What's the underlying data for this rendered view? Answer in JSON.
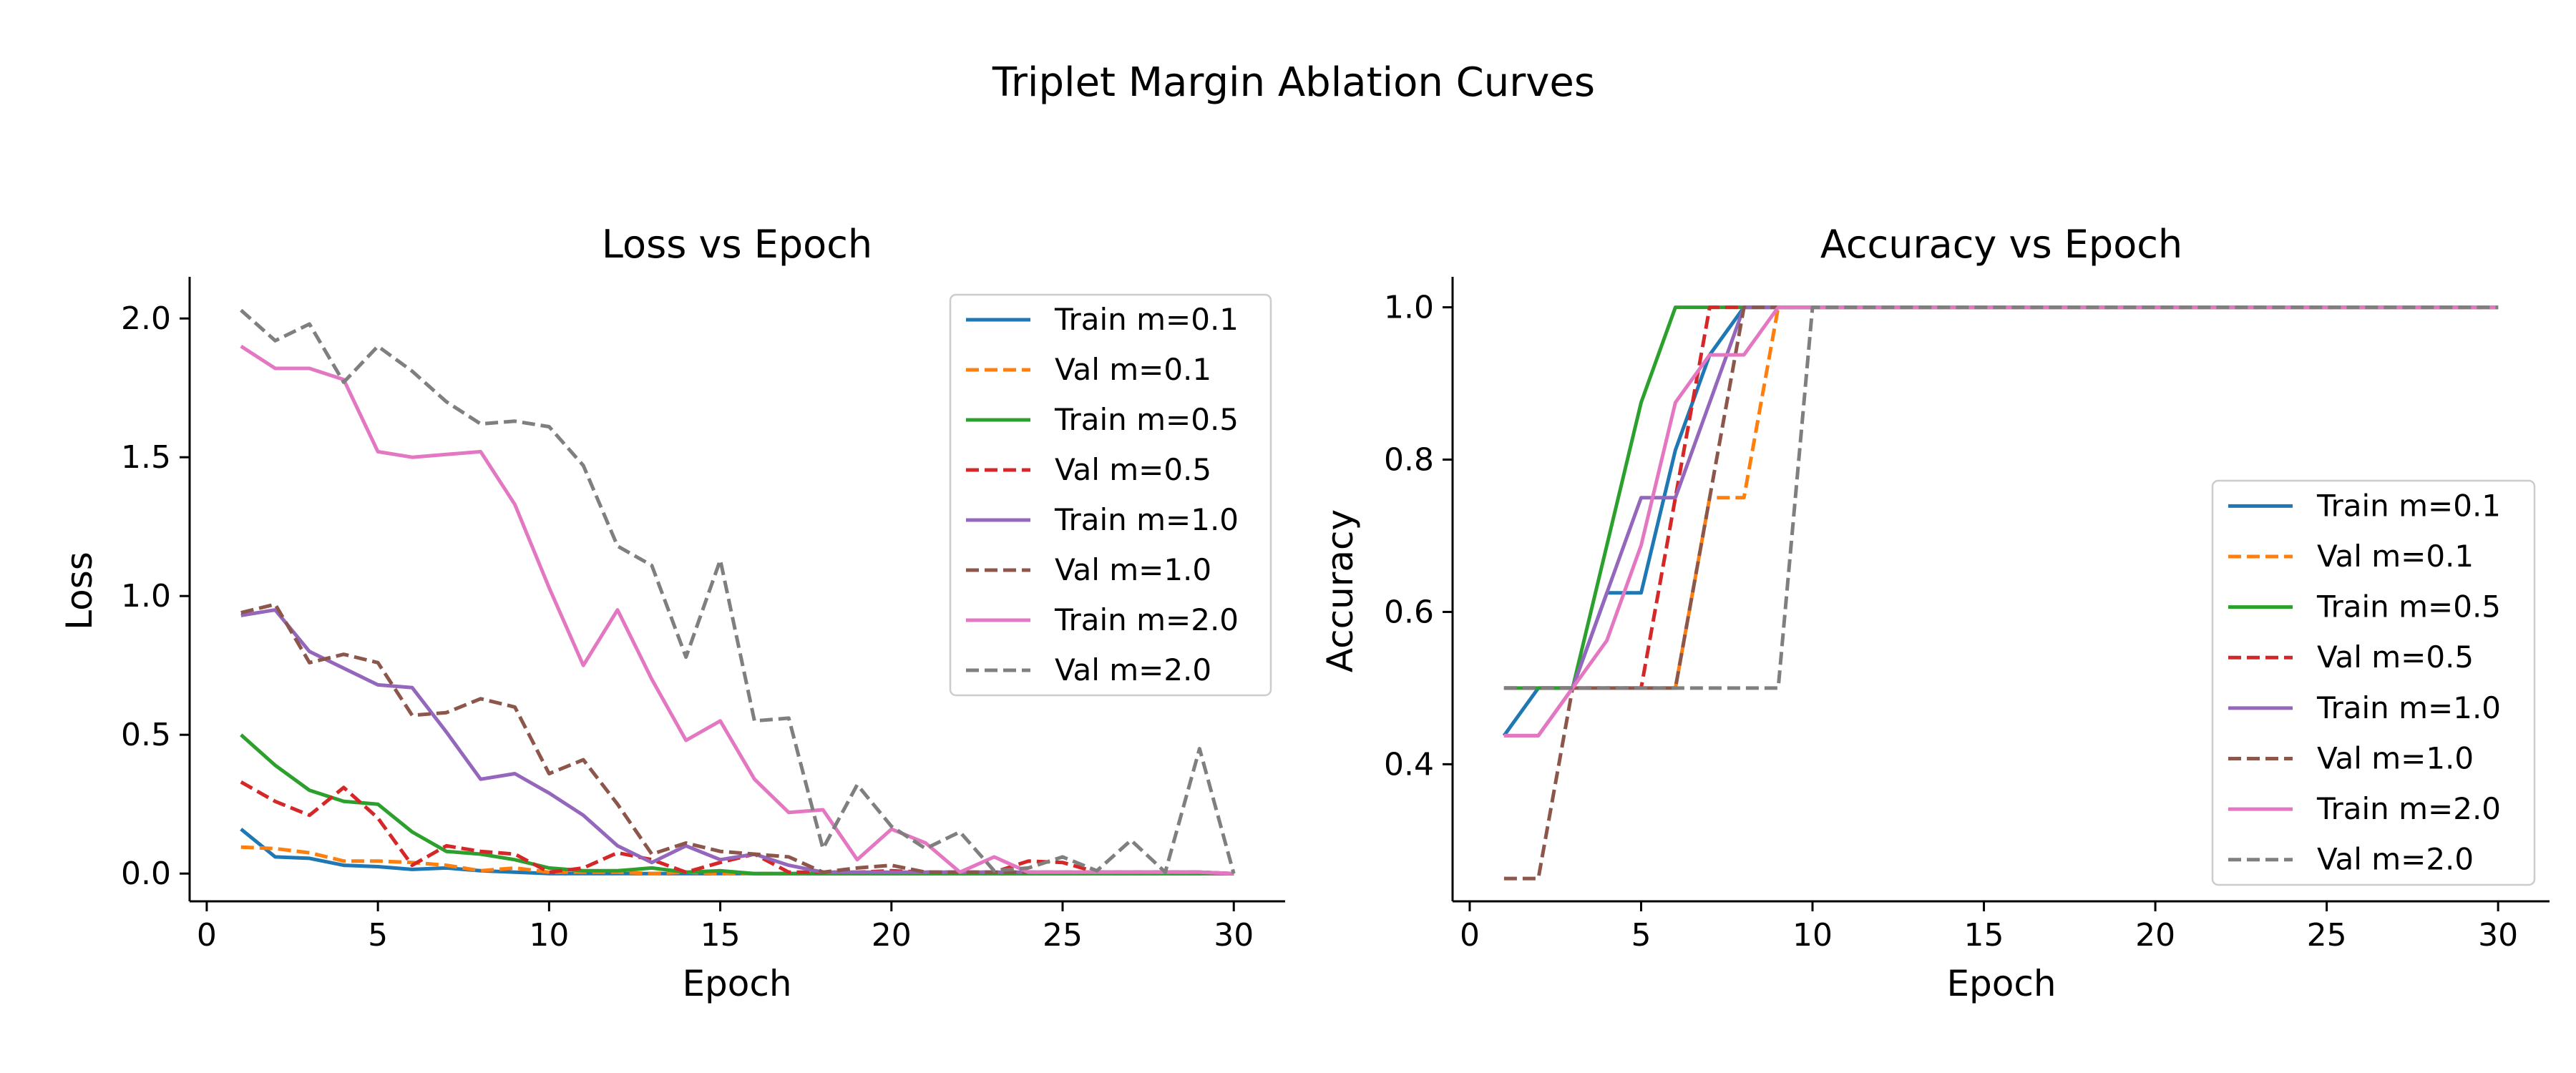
{
  "figure": {
    "title": "Triplet Margin Ablation Curves"
  },
  "colors": {
    "m0.1_train": "#1f77b4",
    "m0.1_val": "#ff7f0e",
    "m0.5_train": "#2ca02c",
    "m0.5_val": "#d62728",
    "m1.0_train": "#9467bd",
    "m1.0_val": "#8c564b",
    "m2.0_train": "#e377c2",
    "m2.0_val": "#7f7f7f"
  },
  "chart_data": [
    {
      "type": "line",
      "title": "Loss vs Epoch",
      "xlabel": "Epoch",
      "ylabel": "Loss",
      "xlim": [
        -0.5,
        31.5
      ],
      "ylim": [
        -0.1,
        2.15
      ],
      "xticks": [
        0,
        5,
        10,
        15,
        20,
        25,
        30
      ],
      "xtick_labels": [
        "0",
        "5",
        "10",
        "15",
        "20",
        "25",
        "30"
      ],
      "yticks": [
        0.0,
        0.5,
        1.0,
        1.5,
        2.0
      ],
      "ytick_labels": [
        "0.0",
        "0.5",
        "1.0",
        "1.5",
        "2.0"
      ],
      "legend_position": "upper right",
      "grid": false,
      "x": [
        1,
        2,
        3,
        4,
        5,
        6,
        7,
        8,
        9,
        10,
        11,
        12,
        13,
        14,
        15,
        16,
        17,
        18,
        19,
        20,
        21,
        22,
        23,
        24,
        25,
        26,
        27,
        28,
        29,
        30
      ],
      "series": [
        {
          "name": "Train m=0.1",
          "color_key": "m0.1_train",
          "dash": "solid",
          "values": [
            0.16,
            0.06,
            0.055,
            0.03,
            0.025,
            0.015,
            0.02,
            0.01,
            0.005,
            0,
            0,
            0,
            0,
            0,
            0,
            0,
            0,
            0,
            0,
            0,
            0,
            0,
            0,
            0,
            0,
            0,
            0,
            0,
            0,
            0
          ]
        },
        {
          "name": "Val m=0.1",
          "color_key": "m0.1_val",
          "dash": "dashed",
          "values": [
            0.095,
            0.09,
            0.075,
            0.045,
            0.045,
            0.04,
            0.03,
            0.01,
            0.02,
            0.005,
            0.005,
            0.005,
            0,
            0.005,
            0,
            0,
            0,
            0,
            0,
            0,
            0,
            0,
            0,
            0,
            0,
            0,
            0,
            0,
            0,
            0
          ]
        },
        {
          "name": "Train m=0.5",
          "color_key": "m0.5_train",
          "dash": "solid",
          "values": [
            0.5,
            0.39,
            0.3,
            0.26,
            0.25,
            0.15,
            0.08,
            0.07,
            0.05,
            0.02,
            0.01,
            0.01,
            0.02,
            0.005,
            0.01,
            0,
            0,
            0,
            0,
            0,
            0,
            0,
            0,
            0,
            0,
            0,
            0,
            0,
            0,
            0
          ]
        },
        {
          "name": "Val m=0.5",
          "color_key": "m0.5_val",
          "dash": "dashed",
          "values": [
            0.33,
            0.26,
            0.21,
            0.31,
            0.2,
            0.03,
            0.1,
            0.08,
            0.07,
            0.005,
            0.02,
            0.075,
            0.05,
            0.005,
            0.04,
            0.07,
            0.005,
            0.005,
            0.005,
            0.01,
            0.005,
            0.005,
            0.005,
            0.045,
            0.04,
            0.005,
            0.005,
            0.005,
            0.005,
            0
          ]
        },
        {
          "name": "Train m=1.0",
          "color_key": "m1.0_train",
          "dash": "solid",
          "values": [
            0.93,
            0.95,
            0.8,
            0.74,
            0.68,
            0.67,
            0.51,
            0.34,
            0.36,
            0.29,
            0.21,
            0.1,
            0.04,
            0.1,
            0.05,
            0.07,
            0.03,
            0.005,
            0.005,
            0.005,
            0.005,
            0.005,
            0.005,
            0.005,
            0.005,
            0.005,
            0.005,
            0.005,
            0.005,
            0
          ]
        },
        {
          "name": "Val m=1.0",
          "color_key": "m1.0_val",
          "dash": "dashed",
          "values": [
            0.94,
            0.97,
            0.76,
            0.79,
            0.76,
            0.57,
            0.58,
            0.63,
            0.6,
            0.36,
            0.41,
            0.25,
            0.07,
            0.11,
            0.08,
            0.07,
            0.06,
            0.005,
            0.02,
            0.03,
            0.005,
            0.005,
            0.005,
            0.005,
            0.005,
            0.005,
            0.005,
            0.005,
            0.005,
            0
          ]
        },
        {
          "name": "Train m=2.0",
          "color_key": "m2.0_train",
          "dash": "solid",
          "values": [
            1.9,
            1.82,
            1.82,
            1.78,
            1.52,
            1.5,
            1.51,
            1.52,
            1.33,
            1.03,
            0.75,
            0.95,
            0.7,
            0.48,
            0.55,
            0.34,
            0.22,
            0.23,
            0.05,
            0.16,
            0.11,
            0.005,
            0.06,
            0.005,
            0.005,
            0.005,
            0.005,
            0.005,
            0.005,
            0
          ]
        },
        {
          "name": "Val m=2.0",
          "color_key": "m2.0_val",
          "dash": "dashed",
          "values": [
            2.03,
            1.92,
            1.98,
            1.77,
            1.9,
            1.81,
            1.7,
            1.62,
            1.63,
            1.61,
            1.47,
            1.18,
            1.11,
            0.78,
            1.13,
            0.55,
            0.56,
            0.09,
            0.32,
            0.17,
            0.09,
            0.15,
            0.01,
            0.02,
            0.06,
            0.01,
            0.12,
            0.005,
            0.45,
            0
          ]
        }
      ]
    },
    {
      "type": "line",
      "title": "Accuracy vs Epoch",
      "xlabel": "Epoch",
      "ylabel": "Accuracy",
      "xlim": [
        -0.5,
        31.5
      ],
      "ylim": [
        0.22,
        1.04
      ],
      "xticks": [
        0,
        5,
        10,
        15,
        20,
        25,
        30
      ],
      "xtick_labels": [
        "0",
        "5",
        "10",
        "15",
        "20",
        "25",
        "30"
      ],
      "yticks": [
        0.4,
        0.6,
        0.8,
        1.0
      ],
      "ytick_labels": [
        "0.4",
        "0.6",
        "0.8",
        "1.0"
      ],
      "legend_position": "lower right",
      "grid": false,
      "x": [
        1,
        2,
        3,
        4,
        5,
        6,
        7,
        8,
        9,
        10,
        11,
        12,
        13,
        14,
        15,
        16,
        17,
        18,
        19,
        20,
        21,
        22,
        23,
        24,
        25,
        26,
        27,
        28,
        29,
        30
      ],
      "series": [
        {
          "name": "Train m=0.1",
          "color_key": "m0.1_train",
          "dash": "solid",
          "values": [
            0.4375,
            0.5,
            0.5,
            0.625,
            0.625,
            0.8125,
            0.9375,
            1,
            1,
            1,
            1,
            1,
            1,
            1,
            1,
            1,
            1,
            1,
            1,
            1,
            1,
            1,
            1,
            1,
            1,
            1,
            1,
            1,
            1,
            1
          ]
        },
        {
          "name": "Val m=0.1",
          "color_key": "m0.1_val",
          "dash": "dashed",
          "values": [
            0.5,
            0.5,
            0.5,
            0.5,
            0.5,
            0.5,
            0.75,
            0.75,
            1,
            1,
            1,
            1,
            1,
            1,
            1,
            1,
            1,
            1,
            1,
            1,
            1,
            1,
            1,
            1,
            1,
            1,
            1,
            1,
            1,
            1
          ]
        },
        {
          "name": "Train m=0.5",
          "color_key": "m0.5_train",
          "dash": "solid",
          "values": [
            0.5,
            0.5,
            0.5,
            0.6875,
            0.875,
            1,
            1,
            1,
            1,
            1,
            1,
            1,
            1,
            1,
            1,
            1,
            1,
            1,
            1,
            1,
            1,
            1,
            1,
            1,
            1,
            1,
            1,
            1,
            1,
            1
          ]
        },
        {
          "name": "Val m=0.5",
          "color_key": "m0.5_val",
          "dash": "dashed",
          "values": [
            0.5,
            0.5,
            0.5,
            0.5,
            0.5,
            0.75,
            1,
            1,
            1,
            1,
            1,
            1,
            1,
            1,
            1,
            1,
            1,
            1,
            1,
            1,
            1,
            1,
            1,
            1,
            1,
            1,
            1,
            1,
            1,
            1
          ]
        },
        {
          "name": "Train m=1.0",
          "color_key": "m1.0_train",
          "dash": "solid",
          "values": [
            0.4375,
            0.4375,
            0.5,
            0.625,
            0.75,
            0.75,
            0.875,
            1,
            1,
            1,
            1,
            1,
            1,
            1,
            1,
            1,
            1,
            1,
            1,
            1,
            1,
            1,
            1,
            1,
            1,
            1,
            1,
            1,
            1,
            1
          ]
        },
        {
          "name": "Val m=1.0",
          "color_key": "m1.0_val",
          "dash": "dashed",
          "values": [
            0.25,
            0.25,
            0.5,
            0.5,
            0.5,
            0.5,
            0.75,
            1,
            1,
            1,
            1,
            1,
            1,
            1,
            1,
            1,
            1,
            1,
            1,
            1,
            1,
            1,
            1,
            1,
            1,
            1,
            1,
            1,
            1,
            1
          ]
        },
        {
          "name": "Train m=2.0",
          "color_key": "m2.0_train",
          "dash": "solid",
          "values": [
            0.4375,
            0.4375,
            0.5,
            0.5625,
            0.6875,
            0.875,
            0.9375,
            0.9375,
            1,
            1,
            1,
            1,
            1,
            1,
            1,
            1,
            1,
            1,
            1,
            1,
            1,
            1,
            1,
            1,
            1,
            1,
            1,
            1,
            1,
            1
          ]
        },
        {
          "name": "Val m=2.0",
          "color_key": "m2.0_val",
          "dash": "dashed",
          "values": [
            0.5,
            0.5,
            0.5,
            0.5,
            0.5,
            0.5,
            0.5,
            0.5,
            0.5,
            1,
            1,
            1,
            1,
            1,
            1,
            1,
            1,
            1,
            1,
            1,
            1,
            1,
            1,
            1,
            1,
            1,
            1,
            1,
            1,
            1
          ]
        }
      ]
    }
  ]
}
